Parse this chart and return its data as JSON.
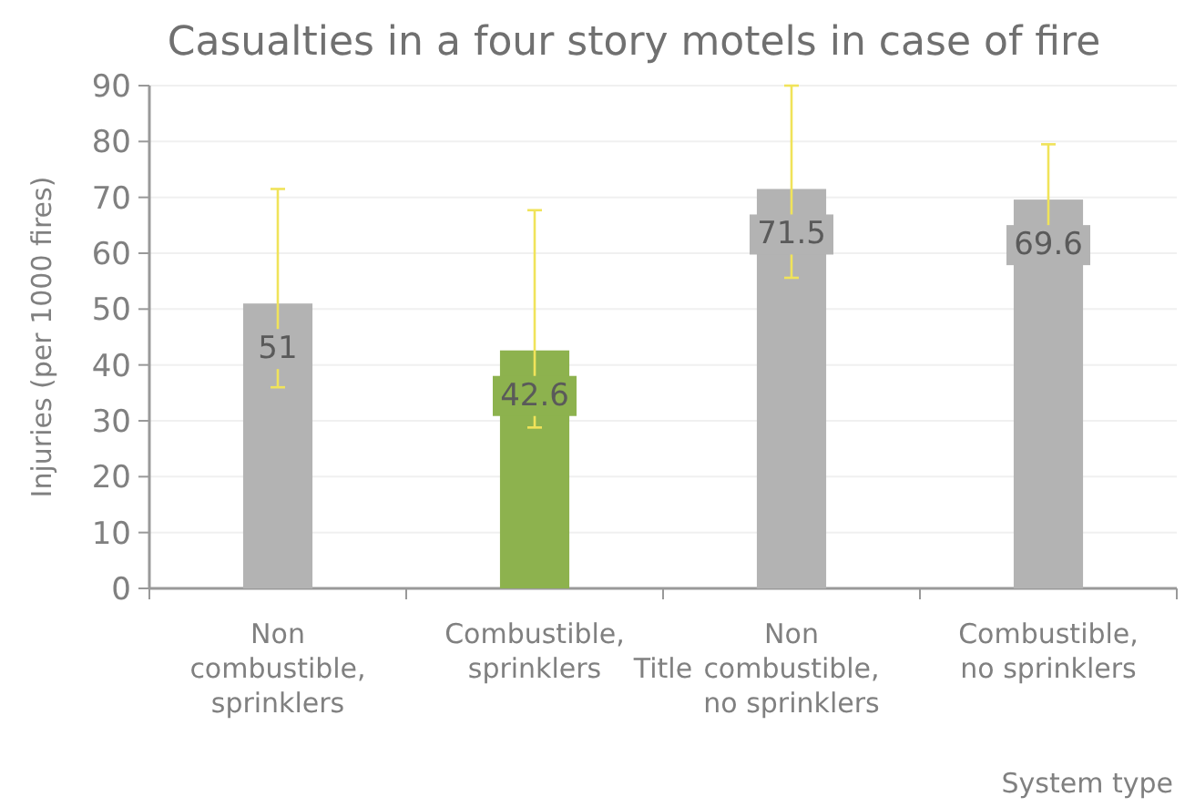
{
  "chart_data": {
    "type": "bar",
    "title": "Casualties in a four story motels in case of fire",
    "xlabel": "System type",
    "ylabel": "Injuries (per 1000 fires)",
    "categories": [
      "Non combustible, sprinklers",
      "Combustible, sprinklers",
      "Non combustible, no sprinklers",
      "Combustible, no sprinklers"
    ],
    "values": [
      51,
      42.6,
      71.5,
      69.6
    ],
    "colors": [
      "#b3b3b3",
      "#8db24e",
      "#b3b3b3",
      "#b3b3b3"
    ],
    "errors": [
      [
        36,
        71.5
      ],
      [
        28.8,
        67.7
      ],
      [
        55.6,
        90
      ],
      [
        59.2,
        79.5
      ]
    ],
    "ylim": [
      0,
      90
    ],
    "yticks": [
      0,
      10,
      20,
      30,
      40,
      50,
      60,
      70,
      80,
      90
    ],
    "grid": "y",
    "data_labels": true,
    "annotations": [
      "Title"
    ]
  }
}
